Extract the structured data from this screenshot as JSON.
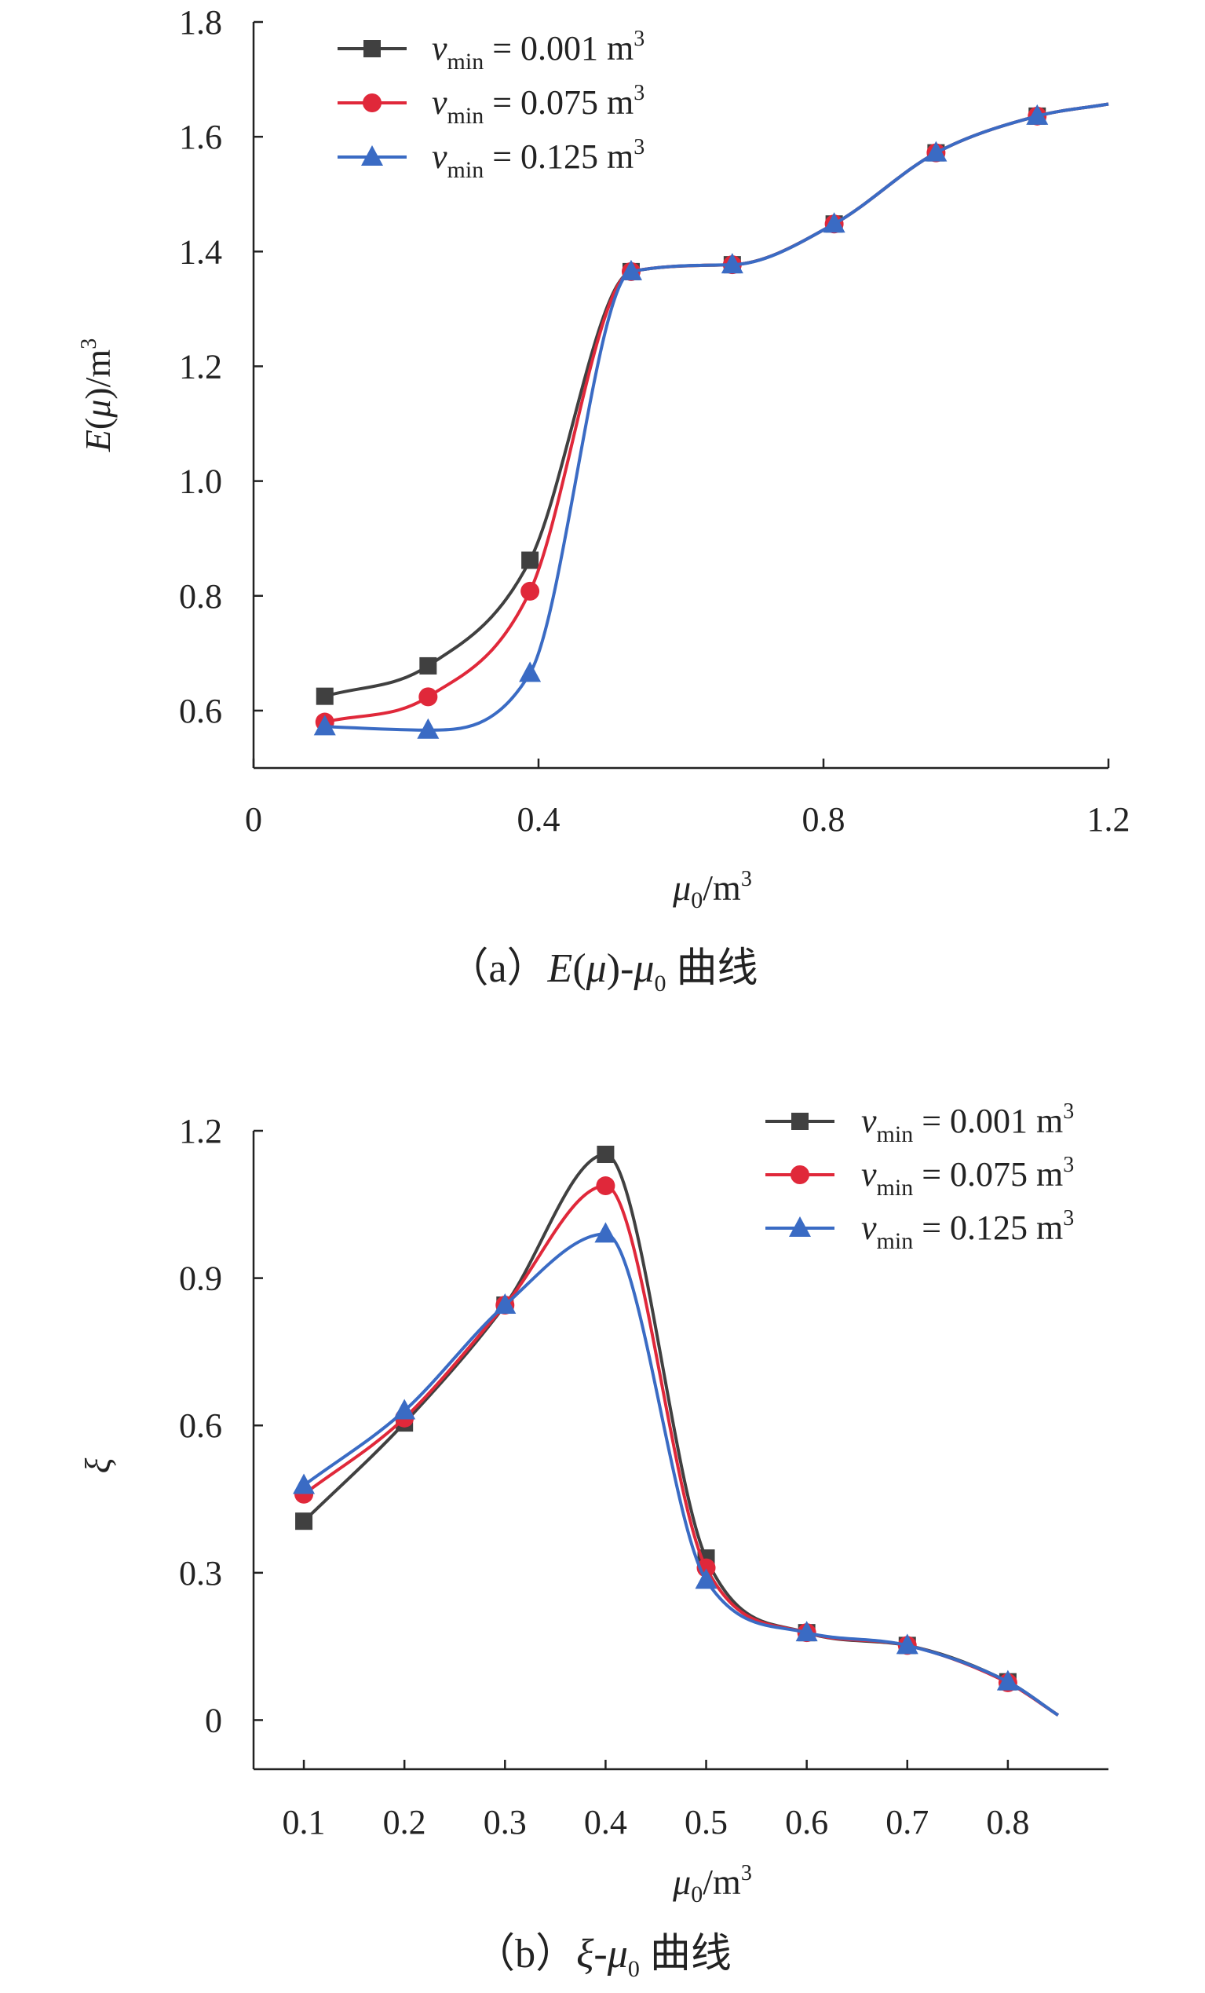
{
  "chart_data": [
    {
      "type": "line",
      "caption": {
        "prefix": "（a）",
        "func": "E",
        "arg": "μ",
        "dash": "-",
        "var": "μ",
        "var_sub": "0",
        "suffix": " 曲线"
      },
      "xlabel": {
        "sym": "μ",
        "sub": "0",
        "unit": "/m",
        "sup": "3"
      },
      "ylabel": {
        "sym": "E",
        "arg": "μ",
        "unit": "/m",
        "sup": "3"
      },
      "xlim": [
        0,
        1.2
      ],
      "ylim": [
        0.5,
        1.8
      ],
      "xticks": [
        "0",
        "0.4",
        "0.8",
        "1.2"
      ],
      "xtick_values": [
        0,
        0.4,
        0.8,
        1.2
      ],
      "yticks": [
        "0.6",
        "0.8",
        "1.0",
        "1.2",
        "1.4",
        "1.6",
        "1.8"
      ],
      "ytick_values": [
        0.6,
        0.8,
        1.0,
        1.2,
        1.4,
        1.6,
        1.8
      ],
      "legend_position": "top-left",
      "series": [
        {
          "name": "0.001",
          "color": "#404040",
          "marker": "square",
          "x": [
            0.1,
            0.245,
            0.388,
            0.53,
            0.672,
            0.815,
            0.958,
            1.1,
            1.2
          ],
          "y": [
            0.625,
            0.678,
            0.862,
            1.365,
            1.377,
            1.448,
            1.572,
            1.636,
            1.657
          ],
          "marker_count": 8
        },
        {
          "name": "0.075",
          "color": "#e0283a",
          "marker": "circle",
          "x": [
            0.1,
            0.245,
            0.388,
            0.53,
            0.672,
            0.815,
            0.958,
            1.1,
            1.2
          ],
          "y": [
            0.58,
            0.624,
            0.808,
            1.365,
            1.377,
            1.448,
            1.572,
            1.636,
            1.657
          ],
          "marker_count": 8
        },
        {
          "name": "0.125",
          "color": "#3a6bc4",
          "marker": "triangle",
          "x": [
            0.1,
            0.245,
            0.388,
            0.53,
            0.672,
            0.815,
            0.958,
            1.1,
            1.2
          ],
          "y": [
            0.572,
            0.566,
            0.665,
            1.365,
            1.377,
            1.448,
            1.572,
            1.636,
            1.657
          ],
          "marker_count": 8
        }
      ]
    },
    {
      "type": "line",
      "caption": {
        "prefix": "（b）",
        "func": "ξ",
        "dash": "-",
        "var": "μ",
        "var_sub": "0",
        "suffix": " 曲线"
      },
      "xlabel": {
        "sym": "μ",
        "sub": "0",
        "unit": "/m",
        "sup": "3"
      },
      "ylabel": {
        "sym": "ξ"
      },
      "xlim": [
        0.05,
        0.9
      ],
      "ylim": [
        -0.1,
        1.2
      ],
      "xticks": [
        "0.1",
        "0.2",
        "0.3",
        "0.4",
        "0.5",
        "0.6",
        "0.7",
        "0.8"
      ],
      "xtick_values": [
        0.1,
        0.2,
        0.3,
        0.4,
        0.5,
        0.6,
        0.7,
        0.8
      ],
      "yticks": [
        "0",
        "0.3",
        "0.6",
        "0.9",
        "1.2"
      ],
      "ytick_values": [
        0,
        0.3,
        0.6,
        0.9,
        1.2
      ],
      "legend_position": "top-right",
      "series": [
        {
          "name": "0.001",
          "color": "#404040",
          "marker": "square",
          "x": [
            0.1,
            0.2,
            0.3,
            0.4,
            0.5,
            0.6,
            0.7,
            0.8,
            0.85
          ],
          "y": [
            0.405,
            0.605,
            0.845,
            1.152,
            0.33,
            0.178,
            0.152,
            0.078,
            0.01
          ],
          "marker_count": 8
        },
        {
          "name": "0.075",
          "color": "#e0283a",
          "marker": "circle",
          "x": [
            0.1,
            0.2,
            0.3,
            0.4,
            0.5,
            0.6,
            0.7,
            0.8,
            0.85
          ],
          "y": [
            0.46,
            0.615,
            0.845,
            1.088,
            0.31,
            0.178,
            0.152,
            0.076,
            0.01
          ],
          "marker_count": 8
        },
        {
          "name": "0.125",
          "color": "#3a6bc4",
          "marker": "triangle",
          "x": [
            0.1,
            0.2,
            0.3,
            0.4,
            0.5,
            0.6,
            0.7,
            0.8,
            0.85
          ],
          "y": [
            0.478,
            0.63,
            0.845,
            0.99,
            0.285,
            0.178,
            0.152,
            0.078,
            0.01
          ],
          "marker_count": 8
        }
      ]
    }
  ],
  "legend_label": {
    "sym": "v",
    "sub": "min",
    "eq": " = ",
    "unit": " m",
    "sup": "3"
  }
}
